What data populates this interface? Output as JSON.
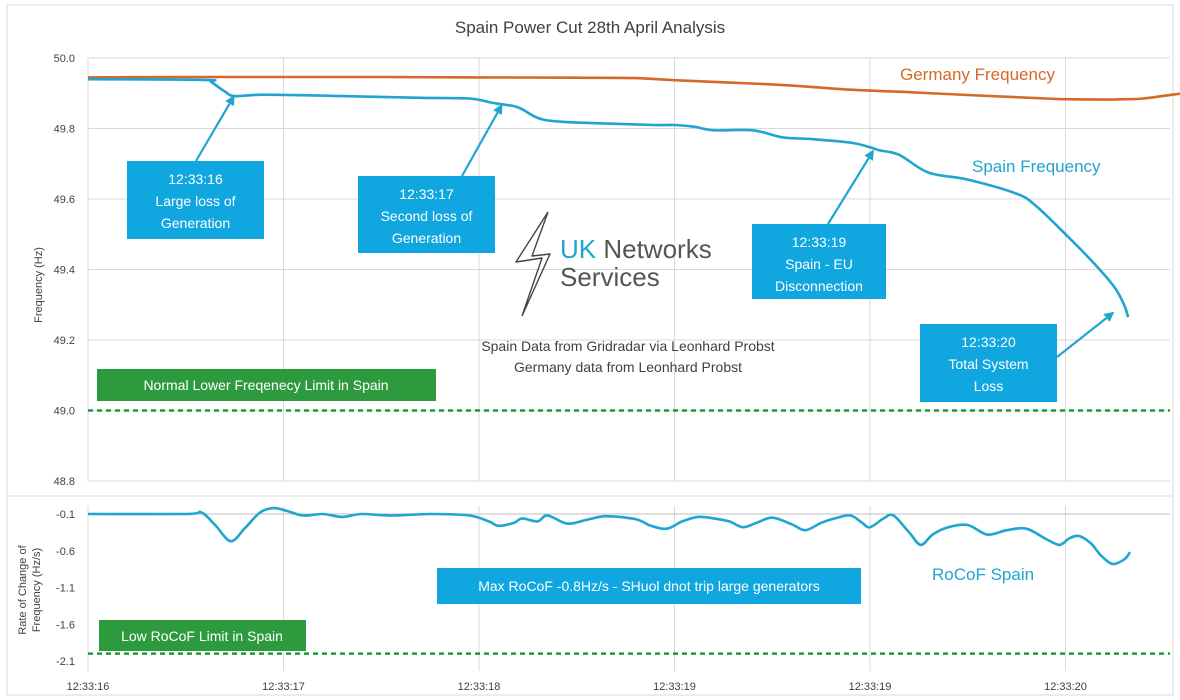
{
  "chart_data": [
    {
      "type": "line",
      "title": "Spain Power Cut 28th April Analysis",
      "ylabel": "Frequency (Hz)",
      "ylim": [
        48.8,
        50.0
      ],
      "yticks": [
        "50.0",
        "49.8",
        "49.6",
        "49.4",
        "49.2",
        "49.0",
        "48.8"
      ],
      "grid": true,
      "series": [
        {
          "name": "Germany Frequency",
          "color": "#d4692a",
          "points": [
            [
              0,
              49.945
            ],
            [
              0.5,
              49.946
            ],
            [
              1,
              49.946
            ],
            [
              1.5,
              49.946
            ],
            [
              2,
              49.945
            ],
            [
              2.5,
              49.944
            ],
            [
              2.8,
              49.943
            ],
            [
              3,
              49.937
            ],
            [
              3.5,
              49.925
            ],
            [
              3.7,
              49.918
            ],
            [
              3.9,
              49.91
            ],
            [
              4.2,
              49.903
            ],
            [
              4.5,
              49.895
            ],
            [
              4.9,
              49.885
            ],
            [
              5,
              49.883
            ],
            [
              5.2,
              49.882
            ],
            [
              5.3,
              49.883
            ],
            [
              5.4,
              49.885
            ],
            [
              5.6,
              49.9
            ],
            [
              5.7,
              49.905
            ]
          ]
        },
        {
          "name": "Spain Frequency",
          "color": "#1fa5cf",
          "points": [
            [
              0,
              49.94
            ],
            [
              0.6,
              49.938
            ],
            [
              0.63,
              49.932
            ],
            [
              0.7,
              49.905
            ],
            [
              0.75,
              49.892
            ],
            [
              0.9,
              49.896
            ],
            [
              1.3,
              49.892
            ],
            [
              1.7,
              49.887
            ],
            [
              1.95,
              49.885
            ],
            [
              2.05,
              49.875
            ],
            [
              2.1,
              49.87
            ],
            [
              2.2,
              49.86
            ],
            [
              2.3,
              49.83
            ],
            [
              2.4,
              49.82
            ],
            [
              2.6,
              49.815
            ],
            [
              2.9,
              49.81
            ],
            [
              3,
              49.81
            ],
            [
              3.1,
              49.805
            ],
            [
              3.2,
              49.795
            ],
            [
              3.4,
              49.795
            ],
            [
              3.55,
              49.775
            ],
            [
              3.7,
              49.77
            ],
            [
              3.9,
              49.76
            ],
            [
              4.0,
              49.747
            ],
            [
              4.05,
              49.738
            ],
            [
              4.15,
              49.725
            ],
            [
              4.3,
              49.675
            ],
            [
              4.5,
              49.655
            ],
            [
              4.75,
              49.615
            ],
            [
              4.85,
              49.58
            ],
            [
              5,
              49.5
            ],
            [
              5.15,
              49.415
            ],
            [
              5.25,
              49.35
            ],
            [
              5.3,
              49.3
            ],
            [
              5.32,
              49.265
            ]
          ]
        }
      ],
      "series_labels": [
        "Germany Frequency",
        "Spain Frequency"
      ],
      "reference_line": {
        "value": 49.0,
        "color": "#1a9a3a",
        "label": "Normal Lower Freqenecy Limit in Spain"
      },
      "annotations": [
        {
          "lines": [
            "12:33:16",
            "Large loss of",
            "Generation"
          ],
          "target": [
            0.75,
            49.895
          ]
        },
        {
          "lines": [
            "12:33:17",
            "Second loss of",
            "Generation"
          ],
          "target": [
            2.12,
            49.87
          ]
        },
        {
          "lines": [
            "12:33:19",
            "Spain - EU",
            "Disconnection"
          ],
          "target": [
            4.02,
            49.74
          ]
        },
        {
          "lines": [
            "12:33:20",
            "Total System",
            "Loss"
          ],
          "target": [
            5.25,
            49.28
          ]
        }
      ],
      "source_lines": [
        "Spain Data from Gridradar via Leonhard Probst",
        "Germany data from Leonhard Probst"
      ],
      "logo": {
        "line1_a": "UK",
        "line1_b": " Networks",
        "line2": "Services",
        "icon": "lightning-bolt-icon"
      }
    },
    {
      "type": "line",
      "ylabel_lines": [
        "Rate of Change of",
        "Frequency (Hz/s)"
      ],
      "ylim": [
        -2.1,
        -0.1
      ],
      "yticks": [
        "-0.1",
        "-0.6",
        "-1.1",
        "-1.6",
        "-2.1"
      ],
      "x_tick_labels": [
        "12:33:16",
        "12:33:17",
        "12:33:18",
        "12:33:19",
        "12:33:19",
        "12:33:20"
      ],
      "series": [
        {
          "name": "RoCoF Spain",
          "color": "#1fa5cf",
          "points": [
            [
              0,
              -0.1
            ],
            [
              0.5,
              -0.1
            ],
            [
              0.58,
              -0.08
            ],
            [
              0.65,
              -0.25
            ],
            [
              0.73,
              -0.47
            ],
            [
              0.8,
              -0.3
            ],
            [
              0.88,
              -0.08
            ],
            [
              0.95,
              -0.02
            ],
            [
              1.02,
              -0.06
            ],
            [
              1.1,
              -0.12
            ],
            [
              1.2,
              -0.1
            ],
            [
              1.3,
              -0.14
            ],
            [
              1.4,
              -0.1
            ],
            [
              1.55,
              -0.12
            ],
            [
              1.75,
              -0.1
            ],
            [
              1.95,
              -0.12
            ],
            [
              2.05,
              -0.2
            ],
            [
              2.1,
              -0.26
            ],
            [
              2.18,
              -0.22
            ],
            [
              2.22,
              -0.16
            ],
            [
              2.3,
              -0.2
            ],
            [
              2.35,
              -0.12
            ],
            [
              2.45,
              -0.23
            ],
            [
              2.55,
              -0.18
            ],
            [
              2.65,
              -0.13
            ],
            [
              2.8,
              -0.17
            ],
            [
              2.88,
              -0.26
            ],
            [
              2.96,
              -0.3
            ],
            [
              3.04,
              -0.2
            ],
            [
              3.12,
              -0.14
            ],
            [
              3.2,
              -0.16
            ],
            [
              3.28,
              -0.2
            ],
            [
              3.35,
              -0.28
            ],
            [
              3.42,
              -0.22
            ],
            [
              3.5,
              -0.15
            ],
            [
              3.6,
              -0.24
            ],
            [
              3.67,
              -0.32
            ],
            [
              3.75,
              -0.22
            ],
            [
              3.82,
              -0.16
            ],
            [
              3.9,
              -0.12
            ],
            [
              3.96,
              -0.22
            ],
            [
              4.0,
              -0.28
            ],
            [
              4.07,
              -0.16
            ],
            [
              4.12,
              -0.12
            ],
            [
              4.2,
              -0.35
            ],
            [
              4.26,
              -0.52
            ],
            [
              4.32,
              -0.38
            ],
            [
              4.4,
              -0.28
            ],
            [
              4.5,
              -0.25
            ],
            [
              4.6,
              -0.38
            ],
            [
              4.7,
              -0.32
            ],
            [
              4.8,
              -0.3
            ],
            [
              4.9,
              -0.44
            ],
            [
              4.97,
              -0.52
            ],
            [
              5.02,
              -0.43
            ],
            [
              5.07,
              -0.4
            ],
            [
              5.13,
              -0.5
            ],
            [
              5.18,
              -0.66
            ],
            [
              5.24,
              -0.78
            ],
            [
              5.3,
              -0.72
            ],
            [
              5.33,
              -0.62
            ]
          ]
        }
      ],
      "series_labels": [
        "RoCoF Spain"
      ],
      "reference_line": {
        "value": -2.0,
        "color": "#1a9a3a",
        "label": "Low RoCoF Limit in Spain"
      },
      "annotation": "Max RoCoF -0.8Hz/s - SHuol dnot trip large generators"
    }
  ]
}
